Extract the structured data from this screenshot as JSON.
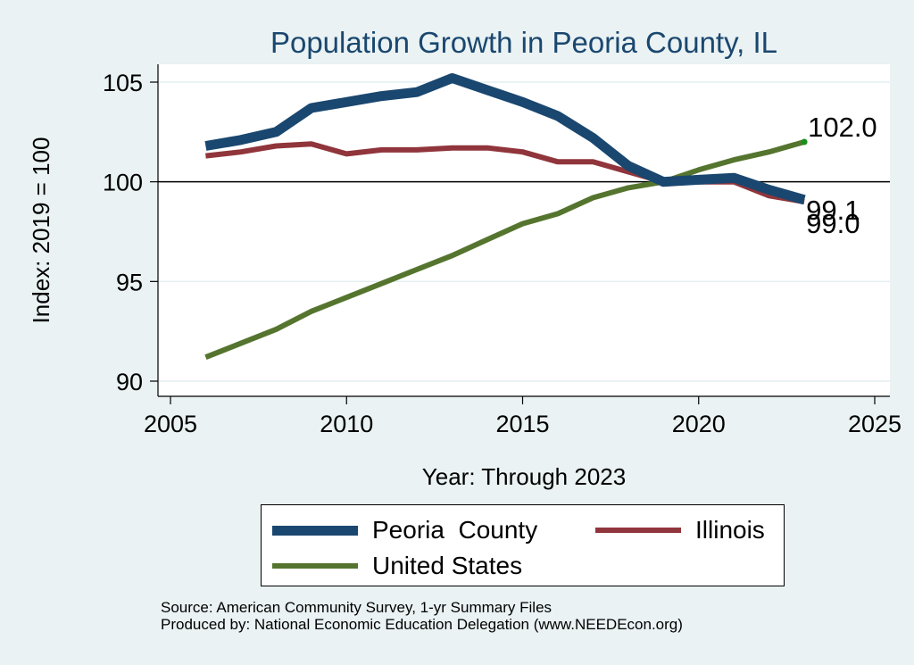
{
  "chart_data": {
    "type": "line",
    "title": "Population Growth in Peoria County, IL",
    "xlabel": "Year: Through 2023",
    "ylabel": "Index: 2019 = 100",
    "xlim": [
      2005,
      2025
    ],
    "ylim": [
      90,
      106
    ],
    "xticks": [
      2005,
      2010,
      2015,
      2020,
      2025
    ],
    "yticks": [
      90,
      95,
      100,
      105
    ],
    "reference_line": 100,
    "grid": "horizontal",
    "legend_position": "bottom",
    "x": [
      2006,
      2007,
      2008,
      2009,
      2010,
      2011,
      2012,
      2013,
      2014,
      2015,
      2016,
      2017,
      2018,
      2019,
      2020,
      2021,
      2022,
      2023
    ],
    "series": [
      {
        "name": "Peoria  County",
        "color": "#1a476f",
        "values": [
          101.8,
          102.1,
          102.5,
          103.7,
          104.0,
          104.3,
          104.5,
          105.2,
          104.6,
          104.0,
          103.3,
          102.2,
          100.8,
          100.0,
          100.1,
          100.2,
          99.6,
          99.1
        ],
        "end_label": "99.1"
      },
      {
        "name": "Illinois",
        "color": "#90353b",
        "values": [
          101.3,
          101.5,
          101.8,
          101.9,
          101.4,
          101.6,
          101.6,
          101.7,
          101.7,
          101.5,
          101.0,
          101.0,
          100.5,
          100.0,
          100.0,
          100.0,
          99.3,
          99.0
        ],
        "end_label": "99.0"
      },
      {
        "name": "United States",
        "color": "#55752f",
        "values": [
          91.2,
          91.9,
          92.6,
          93.5,
          94.2,
          94.9,
          95.6,
          96.3,
          97.1,
          97.9,
          98.4,
          99.2,
          99.7,
          100.0,
          100.6,
          101.1,
          101.5,
          102.0
        ],
        "end_label": "102.0"
      }
    ]
  },
  "source_lines": [
    "Source: American Community Survey, 1-yr Summary Files",
    "Produced by: National Economic Education Delegation (www.NEEDEcon.org)"
  ]
}
